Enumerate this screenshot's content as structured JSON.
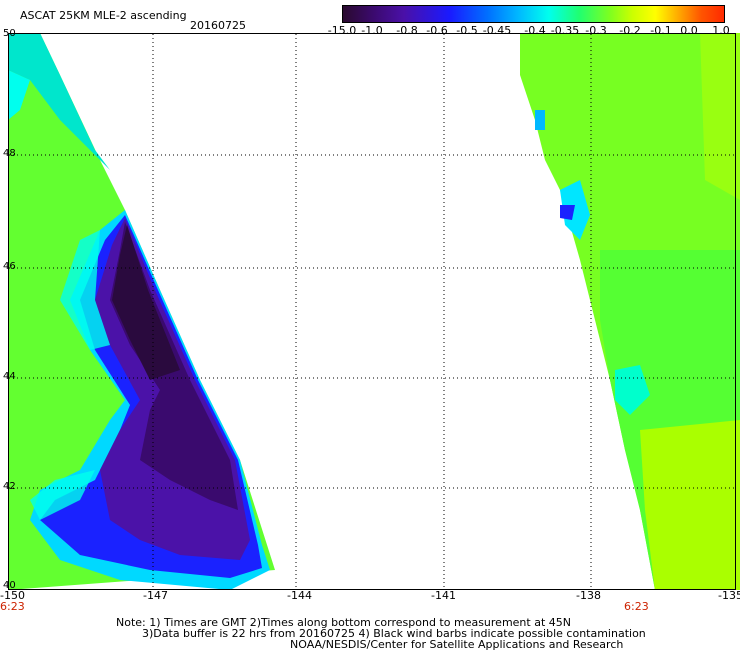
{
  "header": {
    "title": "ASCAT 25KM MLE-2 ascending",
    "date": "20160725"
  },
  "colorbar": {
    "labels": [
      "-15.0",
      "-1.0",
      "-0.8",
      "-0.6",
      "-0.5",
      "-0.45",
      "-0.4",
      "-0.35",
      "-0.3",
      "-0.2",
      "-0.1",
      "0.0",
      "1.0"
    ]
  },
  "map": {
    "lat_labels": [
      "50",
      "48",
      "46",
      "44",
      "42",
      "40"
    ],
    "lon_labels": [
      "-150",
      "-147",
      "-144",
      "-141",
      "-138",
      "-135"
    ],
    "time_labels": [
      "6:23",
      "6:23"
    ]
  },
  "footer": {
    "note_line1": "Note: 1) Times are GMT 2)Times along bottom correspond to measurement at 45N",
    "note_line2": "3)Data buffer is 22 hrs from 20160725 4) Black wind barbs indicate possible contamination",
    "credit": "NOAA/NESDIS/Center for Satellite Applications and Research"
  },
  "colors": {
    "very_low": "#2a0a3e",
    "low": "#4b12a8",
    "blue": "#1a22ff",
    "light_blue": "#0099ff",
    "cyan": "#00ffee",
    "green": "#33ff33",
    "yellow_green": "#aaff00"
  }
}
